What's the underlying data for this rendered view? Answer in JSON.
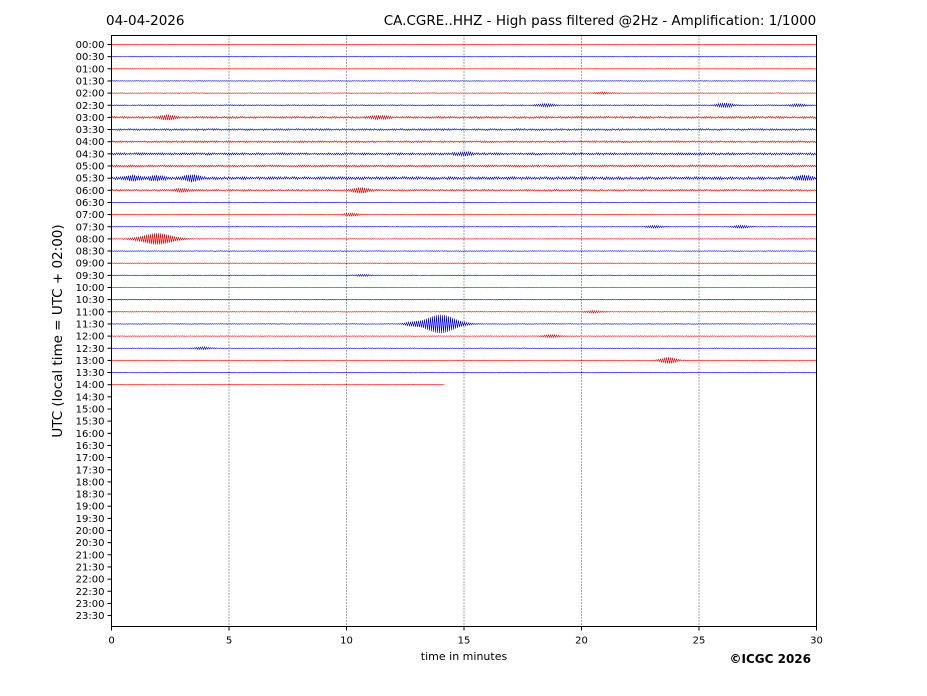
{
  "header": {
    "date": "04-04-2026",
    "title": "CA.CGRE..HHZ - High pass filtered @2Hz - Amplification: 1/1000"
  },
  "copyright": "©ICGC 2026",
  "colors": {
    "odd_trace": "#ff0000",
    "even_trace": "#0000ff",
    "grid": "#000000",
    "frame": "#000000"
  },
  "chart_data": {
    "type": "line",
    "title": "CA.CGRE..HHZ - High pass filtered @2Hz - Amplification: 1/1000",
    "xlabel": "time in minutes",
    "ylabel": "UTC (local time = UTC + 02:00)",
    "xlim": [
      0,
      30
    ],
    "x_ticks": [
      "0",
      "5",
      "10",
      "15",
      "20",
      "25",
      "30"
    ],
    "grid": "vertical dotted lines at 5-minute ticks",
    "series_colors_alternate": [
      "red",
      "blue"
    ],
    "rows": [
      {
        "label": "00:00",
        "x_end": 30,
        "base": 0.15,
        "events": []
      },
      {
        "label": "00:30",
        "x_end": 30,
        "base": 0.25,
        "events": []
      },
      {
        "label": "01:00",
        "x_end": 30,
        "base": 0.2,
        "events": []
      },
      {
        "label": "01:30",
        "x_end": 30,
        "base": 0.3,
        "events": []
      },
      {
        "label": "02:00",
        "x_end": 30,
        "base": 0.3,
        "events": [
          {
            "t": 20.9,
            "amp": 0.8
          }
        ]
      },
      {
        "label": "02:30",
        "x_end": 30,
        "base": 0.5,
        "events": [
          {
            "t": 18.5,
            "amp": 1.2
          },
          {
            "t": 26.1,
            "amp": 2.0
          },
          {
            "t": 29.2,
            "amp": 1.0
          }
        ]
      },
      {
        "label": "03:00",
        "x_end": 30,
        "base": 0.9,
        "events": [
          {
            "t": 2.4,
            "amp": 2.0
          },
          {
            "t": 11.4,
            "amp": 1.4
          }
        ]
      },
      {
        "label": "03:30",
        "x_end": 30,
        "base": 0.8,
        "events": []
      },
      {
        "label": "04:00",
        "x_end": 30,
        "base": 0.8,
        "events": []
      },
      {
        "label": "04:30",
        "x_end": 30,
        "base": 1.0,
        "events": [
          {
            "t": 15.0,
            "amp": 1.2
          }
        ]
      },
      {
        "label": "05:00",
        "x_end": 30,
        "base": 0.9,
        "events": []
      },
      {
        "label": "05:30",
        "x_end": 30,
        "base": 1.2,
        "events": [
          {
            "t": 0.9,
            "amp": 2.0
          },
          {
            "t": 1.9,
            "amp": 2.0
          },
          {
            "t": 3.4,
            "amp": 3.0
          },
          {
            "t": 29.5,
            "amp": 2.0
          }
        ]
      },
      {
        "label": "06:00",
        "x_end": 30,
        "base": 0.8,
        "events": [
          {
            "t": 10.6,
            "amp": 2.2
          },
          {
            "t": 3.0,
            "amp": 1.2
          }
        ]
      },
      {
        "label": "06:30",
        "x_end": 30,
        "base": 0.3,
        "events": []
      },
      {
        "label": "07:00",
        "x_end": 30,
        "base": 0.3,
        "events": [
          {
            "t": 10.2,
            "amp": 1.2
          }
        ]
      },
      {
        "label": "07:30",
        "x_end": 30,
        "base": 0.3,
        "events": [
          {
            "t": 23.1,
            "amp": 1.0
          },
          {
            "t": 26.8,
            "amp": 1.2
          }
        ]
      },
      {
        "label": "08:00",
        "x_end": 30,
        "base": 0.3,
        "events": [
          {
            "t": 1.95,
            "amp": 5.5
          }
        ]
      },
      {
        "label": "08:30",
        "x_end": 30,
        "base": 0.3,
        "events": []
      },
      {
        "label": "09:00",
        "x_end": 30,
        "base": 0.3,
        "events": []
      },
      {
        "label": "09:30",
        "x_end": 30,
        "base": 0.3,
        "events": [
          {
            "t": 10.7,
            "amp": 0.8
          }
        ]
      },
      {
        "label": "10:00",
        "x_end": 30,
        "base": 0.3,
        "events": []
      },
      {
        "label": "10:30",
        "x_end": 30,
        "base": 0.3,
        "events": []
      },
      {
        "label": "11:00",
        "x_end": 30,
        "base": 0.3,
        "events": [
          {
            "t": 20.5,
            "amp": 1.0
          }
        ]
      },
      {
        "label": "11:30",
        "x_end": 30,
        "base": 0.3,
        "events": [
          {
            "t": 12.8,
            "amp": 1.4
          },
          {
            "t": 14.0,
            "amp": 9.0
          }
        ]
      },
      {
        "label": "12:00",
        "x_end": 30,
        "base": 0.3,
        "events": [
          {
            "t": 18.7,
            "amp": 1.2
          }
        ]
      },
      {
        "label": "12:30",
        "x_end": 30,
        "base": 0.3,
        "events": [
          {
            "t": 3.9,
            "amp": 1.0
          }
        ]
      },
      {
        "label": "13:00",
        "x_end": 30,
        "base": 0.3,
        "events": [
          {
            "t": 23.7,
            "amp": 3.0
          }
        ]
      },
      {
        "label": "13:30",
        "x_end": 30,
        "base": 0.3,
        "events": []
      },
      {
        "label": "14:00",
        "x_end": 14.2,
        "base": 0.2,
        "events": []
      },
      {
        "label": "14:30"
      },
      {
        "label": "15:00"
      },
      {
        "label": "15:30"
      },
      {
        "label": "16:00"
      },
      {
        "label": "16:30"
      },
      {
        "label": "17:00"
      },
      {
        "label": "17:30"
      },
      {
        "label": "18:00"
      },
      {
        "label": "18:30"
      },
      {
        "label": "19:00"
      },
      {
        "label": "19:30"
      },
      {
        "label": "20:00"
      },
      {
        "label": "20:30"
      },
      {
        "label": "21:00"
      },
      {
        "label": "21:30"
      },
      {
        "label": "22:00"
      },
      {
        "label": "22:30"
      },
      {
        "label": "23:00"
      },
      {
        "label": "23:30"
      }
    ]
  }
}
